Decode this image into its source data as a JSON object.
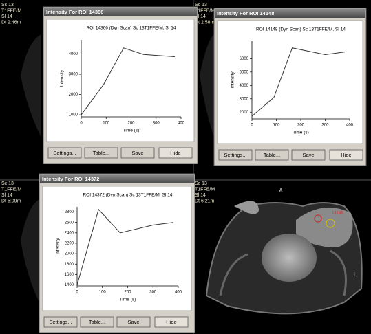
{
  "panels": [
    {
      "labels": [
        "Sc 13",
        "T1FFE/M",
        "Sl 14",
        "Dt 2:46m"
      ]
    },
    {
      "labels": [
        "Sc 13",
        "T1FFE/M",
        "Sl 14",
        "Dt 2:58m"
      ]
    },
    {
      "labels": [
        "Sc 13",
        "T1FFE/M",
        "Sl 14",
        "Dt 5:09m"
      ]
    },
    {
      "labels": [
        "Sc 13",
        "T1FFE/M",
        "Sl 14",
        "Dt 6:21m"
      ]
    }
  ],
  "image_annotations": {
    "anterior": "A",
    "left": "L",
    "roi": "14148"
  },
  "windows": [
    {
      "title": "Intensity For ROI 14366",
      "buttons": [
        "Settings...",
        "Table...",
        "Save",
        "Hide"
      ]
    },
    {
      "title": "Intensity For ROI 14148",
      "buttons": [
        "Settings...",
        "Table...",
        "Save",
        "Hide"
      ]
    },
    {
      "title": "Intensity For ROI 14372",
      "buttons": [
        "Settings...",
        "Table...",
        "Save",
        "Hide"
      ]
    }
  ],
  "chart_data": [
    {
      "type": "line",
      "title": "ROI 14366 (Dyn Scan) Sc 13T1FFE/M, SI 14",
      "x_label": "Time (s)",
      "y_label": "Intensity",
      "x": [
        0,
        90,
        170,
        250,
        375
      ],
      "values": [
        1000,
        2500,
        4300,
        3980,
        3870
      ],
      "xlim": [
        0,
        400
      ],
      "ylim": [
        900,
        4700
      ],
      "xticks": [
        0,
        100,
        200,
        300,
        400
      ],
      "yticks": [
        1000,
        2000,
        3000,
        4000
      ],
      "color": "#333333"
    },
    {
      "type": "line",
      "title": "ROI 14148 (Dyn Scan) Sc 13T1FFE/M, SI 14",
      "x_label": "Time (s)",
      "y_label": "Intensity",
      "x": [
        0,
        90,
        165,
        300,
        380
      ],
      "values": [
        1700,
        3100,
        6800,
        6300,
        6500
      ],
      "xlim": [
        0,
        400
      ],
      "ylim": [
        1500,
        7300
      ],
      "xticks": [
        0,
        100,
        200,
        300,
        400
      ],
      "yticks": [
        2000,
        3000,
        4000,
        5000,
        6000
      ],
      "color": "#333333"
    },
    {
      "type": "line",
      "title": "ROI 14372 (Dyn Scan) Sc 13T1FFE/M, SI 14",
      "x_label": "Time (s)",
      "y_label": "Intensity",
      "x": [
        0,
        85,
        170,
        300,
        380
      ],
      "values": [
        1400,
        2850,
        2400,
        2550,
        2600
      ],
      "xlim": [
        0,
        400
      ],
      "ylim": [
        1380,
        2900
      ],
      "xticks": [
        0,
        100,
        200,
        300,
        400
      ],
      "yticks": [
        1400,
        1600,
        1800,
        2000,
        2200,
        2400,
        2600,
        2800
      ],
      "color": "#333333"
    }
  ]
}
